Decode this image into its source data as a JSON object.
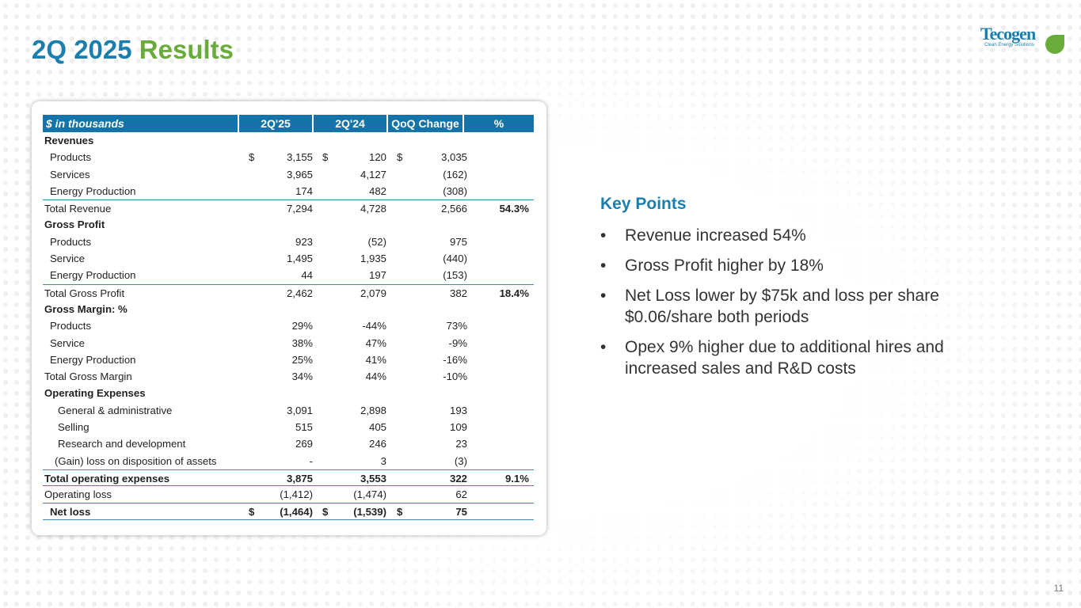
{
  "title": {
    "part1": "2Q 2025",
    "part2": "Results"
  },
  "logo": {
    "name": "Tecogen",
    "tagline": "Clean Energy Solutions"
  },
  "table": {
    "headers": [
      "$ in thousands",
      "2Q'25",
      "2Q'24",
      "QoQ Change",
      "%"
    ],
    "rows": [
      {
        "type": "sec",
        "label": "Revenues"
      },
      {
        "type": "i1",
        "label": "Products",
        "d": true,
        "v": [
          "3,155",
          "120",
          "3,035",
          ""
        ]
      },
      {
        "type": "i1",
        "label": "Services",
        "v": [
          "3,965",
          "4,127",
          "(162)",
          ""
        ]
      },
      {
        "type": "i1",
        "label": "Energy Production",
        "v": [
          "174",
          "482",
          "(308)",
          ""
        ]
      },
      {
        "type": "tot",
        "label": "Total Revenue",
        "v": [
          "7,294",
          "4,728",
          "2,566",
          "54.3%"
        ]
      },
      {
        "type": "sec",
        "label": "Gross Profit"
      },
      {
        "type": "i1",
        "label": "Products",
        "v": [
          "923",
          "(52)",
          "975",
          ""
        ]
      },
      {
        "type": "i1",
        "label": "Service",
        "v": [
          "1,495",
          "1,935",
          "(440)",
          ""
        ]
      },
      {
        "type": "i1",
        "label": "Energy Production",
        "v": [
          "44",
          "197",
          "(153)",
          ""
        ]
      },
      {
        "type": "tot",
        "label": "Total Gross Profit",
        "v": [
          "2,462",
          "2,079",
          "382",
          "18.4%"
        ]
      },
      {
        "type": "sec",
        "label": "Gross Margin: %"
      },
      {
        "type": "i1",
        "label": "Products",
        "v": [
          "29%",
          "-44%",
          "73%",
          ""
        ]
      },
      {
        "type": "i1",
        "label": "Service",
        "v": [
          "38%",
          "47%",
          "-9%",
          ""
        ]
      },
      {
        "type": "i1",
        "label": "Energy Production",
        "v": [
          "25%",
          "41%",
          "-16%",
          ""
        ]
      },
      {
        "type": "plain",
        "label": "Total Gross Margin",
        "v": [
          "34%",
          "44%",
          "-10%",
          ""
        ]
      },
      {
        "type": "sec",
        "label": "Operating Expenses"
      },
      {
        "type": "i2",
        "label": "General & administrative",
        "v": [
          "3,091",
          "2,898",
          "193",
          ""
        ]
      },
      {
        "type": "i2",
        "label": "Selling",
        "v": [
          "515",
          "405",
          "109",
          ""
        ]
      },
      {
        "type": "i2",
        "label": "Research and development",
        "v": [
          "269",
          "246",
          "23",
          ""
        ]
      },
      {
        "type": "i3",
        "label": "(Gain) loss on disposition of assets",
        "v": [
          "-",
          "3",
          "(3)",
          ""
        ]
      },
      {
        "type": "boldtot",
        "label": "Total operating expenses",
        "v": [
          "3,875",
          "3,553",
          "322",
          "9.1%"
        ]
      },
      {
        "type": "opl",
        "label": "Operating loss",
        "v": [
          "(1,412)",
          "(1,474)",
          "62",
          ""
        ]
      },
      {
        "type": "net",
        "label": "Net loss",
        "d": true,
        "v": [
          "(1,464)",
          "(1,539)",
          "75",
          ""
        ]
      }
    ]
  },
  "key_points": {
    "heading": "Key Points",
    "items": [
      "Revenue increased 54%",
      "Gross Profit higher by 18%",
      "Net Loss lower by $75k and loss per share $0.06/share both periods",
      "Opex 9% higher due to additional hires and increased sales and R&D costs"
    ]
  },
  "page_number": "11",
  "currency_symbol": "$"
}
